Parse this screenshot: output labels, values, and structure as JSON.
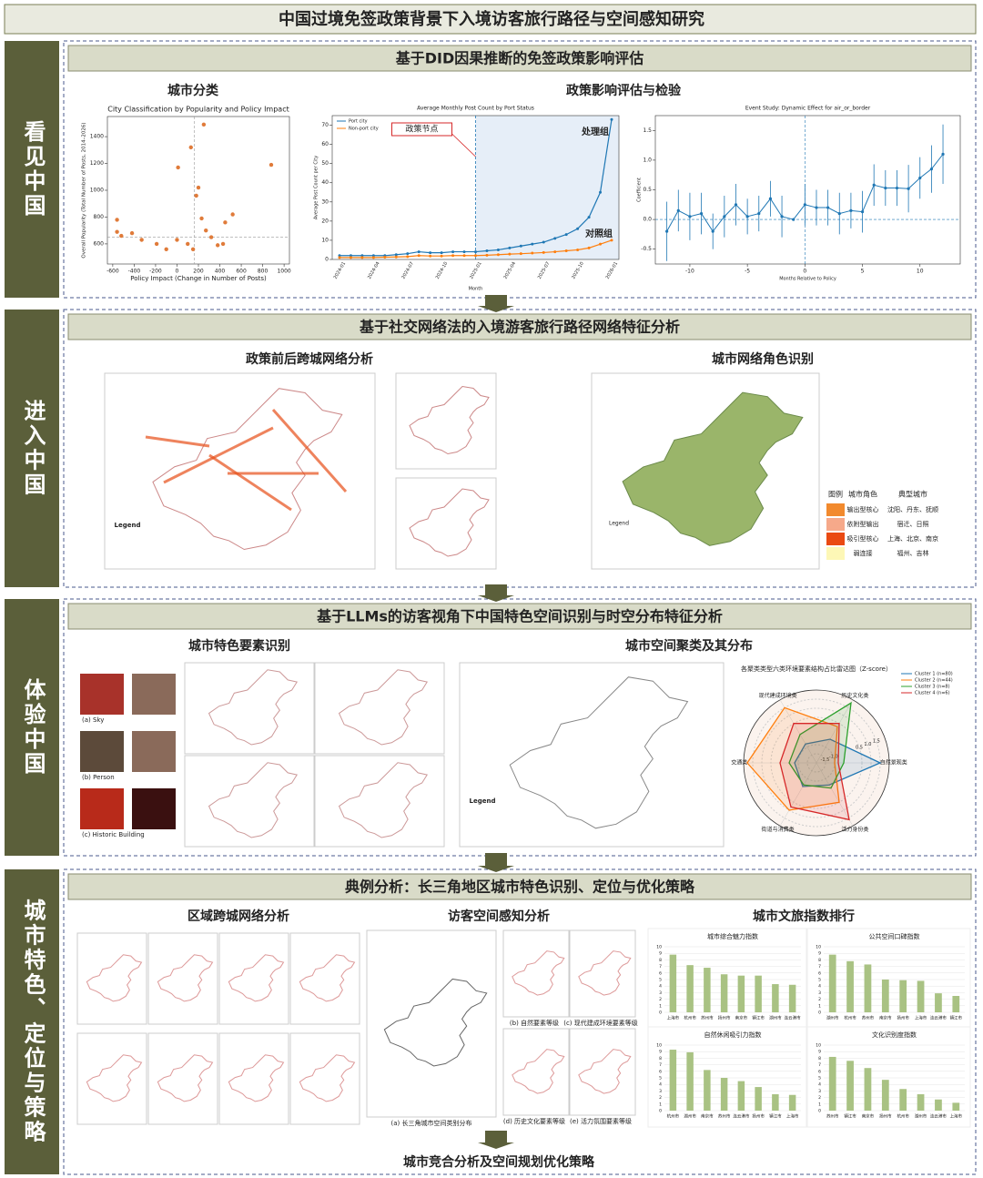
{
  "title": "中国过境免签政策背景下入境访客旅行路径与空间感知研究",
  "sections": [
    {
      "label": "看见中国",
      "header": "基于DID因果推断的免签政策影响评估",
      "panels": [
        "城市分类",
        "政策影响评估与检验"
      ]
    },
    {
      "label": "进入中国",
      "header": "基于社交网络法的入境游客旅行路径网络特征分析",
      "panels": [
        "政策前后跨城网络分析",
        "城市网络角色识别"
      ],
      "map_legend": "Legend",
      "legend": {
        "title": "图例",
        "columns": [
          "城市角色",
          "典型城市"
        ],
        "rows": [
          {
            "role": "输出型核心",
            "cities": "沈阳、丹东、抚顺",
            "color": "#f28a2e"
          },
          {
            "role": "依附型输出",
            "cities": "宿迁、日照",
            "color": "#f6a98a"
          },
          {
            "role": "吸引型核心",
            "cities": "上海、北京、南京",
            "color": "#ea4a12"
          },
          {
            "role": "弱连接",
            "cities": "福州、吉林",
            "color": "#fdf7b6"
          }
        ]
      }
    },
    {
      "label": "体验中国",
      "header": "基于LLMs的访客视角下中国特色空间识别与时空分布特征分析",
      "panels": [
        "城市特色要素识别",
        "城市空间聚类及其分布"
      ],
      "map_legend": "Legend",
      "photo_captions": [
        "(a) Sky",
        "(b) Person",
        "(c) Historic Building"
      ]
    },
    {
      "label": "城市特色、定位与策略",
      "header": "典例分析：长三角地区城市特色识别、定位与优化策略",
      "panels": [
        "区域跨城网络分析",
        "访客空间感知分析",
        "城市文旅指数排行"
      ],
      "captions": [
        "(a) 长三角城市空间类别分布",
        "(b) 自然要素等级",
        "(c) 现代建成环境要素等级",
        "(d) 历史文化要素等级",
        "(e) 活力氛围要素等级"
      ],
      "footer": "城市竞合分析及空间规划优化策略"
    }
  ],
  "chart_data": [
    {
      "type": "scatter",
      "title": "City Classification by Popularity and Policy Impact",
      "x_label": "Policy Impact (Change in Number of Posts)",
      "y_label": "Overall Popularity (Total Number of Posts, 2014–2026)",
      "color": "#e07b3a",
      "x": [
        -560,
        -560,
        -520,
        -420,
        -330,
        -190,
        -100,
        0,
        10,
        130,
        180,
        200,
        250,
        230,
        270,
        320,
        380,
        430,
        450,
        520,
        880,
        100,
        150
      ],
      "values": [
        780,
        690,
        660,
        680,
        630,
        600,
        560,
        630,
        1170,
        1320,
        960,
        1020,
        1490,
        790,
        700,
        650,
        590,
        600,
        760,
        820,
        1190,
        600,
        560
      ],
      "reference_lines": {
        "x": 160,
        "y": 650
      },
      "xlim": [
        -650,
        1050
      ],
      "xticks": [
        -600,
        -400,
        -200,
        0,
        200,
        400,
        600,
        800,
        1000
      ],
      "ylim": [
        450,
        1550
      ],
      "yticks": [
        600,
        800,
        1000,
        1200,
        1400
      ]
    },
    {
      "type": "line",
      "title": "Average Monthly Post Count by Port Status",
      "x_label": "Month",
      "y_label": "Average Post Count per City",
      "categories": [
        "2024-01",
        null,
        null,
        "2024-04",
        null,
        null,
        "2024-07",
        null,
        null,
        "2024-10",
        null,
        null,
        "2025-01",
        null,
        null,
        "2025-04",
        null,
        null,
        "2025-07",
        null,
        null,
        "2025-10",
        null,
        null,
        "2026-01"
      ],
      "series": [
        {
          "name": "Port city",
          "color": "#1f77b4",
          "values": [
            2,
            2,
            2,
            2,
            2,
            2.5,
            3,
            4,
            3.5,
            3.5,
            4,
            4,
            4,
            4.5,
            5,
            6,
            7,
            8,
            9,
            11,
            13,
            16,
            22,
            35,
            73
          ]
        },
        {
          "name": "Non-port city",
          "color": "#ff7f0e",
          "values": [
            1,
            1,
            1,
            1,
            1.2,
            1.3,
            1.5,
            2,
            1.8,
            1.8,
            2,
            2,
            2,
            2.2,
            2.5,
            2.8,
            3,
            3.3,
            3.6,
            4,
            4.5,
            5,
            6,
            8,
            10
          ]
        }
      ],
      "annotations": [
        {
          "text": "政策节点",
          "x": "2025-01"
        },
        {
          "text": "处理组"
        },
        {
          "text": "对照组"
        }
      ],
      "ylim": [
        0,
        75
      ],
      "yticks": [
        0,
        10,
        20,
        30,
        40,
        50,
        60,
        70
      ]
    },
    {
      "type": "errorbar",
      "title": "Event Study: Dynamic Effect for air_or_border",
      "x_label": "Months Relative to Policy",
      "y_label": "Coefficient",
      "color": "#1f77b4",
      "x": [
        -12,
        -11,
        -10,
        -9,
        -8,
        -7,
        -6,
        -5,
        -4,
        -3,
        -2,
        -1,
        0,
        1,
        2,
        3,
        4,
        5,
        6,
        7,
        8,
        9,
        10,
        11,
        12
      ],
      "values": [
        -0.2,
        0.15,
        0.05,
        0.1,
        -0.2,
        0.05,
        0.25,
        0.05,
        0.1,
        0.35,
        0.05,
        0,
        0.25,
        0.2,
        0.2,
        0.1,
        0.15,
        0.13,
        0.58,
        0.53,
        0.53,
        0.52,
        0.7,
        0.85,
        1.1
      ],
      "errors": [
        0.5,
        0.35,
        0.4,
        0.35,
        0.3,
        0.35,
        0.35,
        0.3,
        0.3,
        0.3,
        0.35,
        0,
        0.35,
        0.3,
        0.3,
        0.35,
        0.3,
        0.35,
        0.35,
        0.3,
        0.3,
        0.4,
        0.35,
        0.4,
        0.5
      ],
      "xlim": [
        -13,
        13.5
      ],
      "xticks": [
        -10,
        -5,
        0,
        5,
        10
      ],
      "ylim": [
        -0.75,
        1.75
      ],
      "yticks": [
        {
          "value": -0.5,
          "label": "-0.5"
        },
        {
          "value": 0,
          "label": "0.0"
        },
        {
          "value": 0.5,
          "label": "0.5"
        },
        {
          "value": 1,
          "label": "1.0"
        },
        {
          "value": 1.5,
          "label": "1.5"
        }
      ]
    },
    {
      "type": "radar",
      "title": "各聚类类型六类环境要素结构占比雷达图（Z-score）",
      "categories": [
        "自然景观类",
        "历史文化类",
        "现代建成环境类",
        "交通类",
        "街道与消费类",
        "活力身份类"
      ],
      "series": [
        {
          "name": "Cluster 1 (n=80)",
          "color": "#1f77b4",
          "values": [
            1.5,
            -0.5,
            -0.8,
            -0.8,
            -0.5,
            -0.6
          ]
        },
        {
          "name": "Cluster 2 (n=44)",
          "color": "#ff7f0e",
          "values": [
            -1.0,
            0.3,
            1.5,
            1.8,
            1.0,
            0.5
          ]
        },
        {
          "name": "Cluster 3 (n=8)",
          "color": "#2ca02c",
          "values": [
            -0.5,
            1.8,
            -0.2,
            -0.5,
            -0.6,
            -0.4
          ]
        },
        {
          "name": "Cluster 4 (n=6)",
          "color": "#d62728",
          "values": [
            -0.8,
            0.5,
            0.5,
            0.0,
            0.8,
            1.6
          ]
        }
      ],
      "rlim": [
        -2,
        2
      ],
      "rticks": [
        -1.5,
        {
          "value": -1,
          "label": "-1.0"
        },
        0.5,
        {
          "value": 1,
          "label": "1.0"
        },
        1.5
      ]
    },
    {
      "type": "bar",
      "title": "城市综合魅力指数",
      "color": "#a9c283",
      "categories": [
        "上海市",
        "杭州市",
        "苏州市",
        "扬州市",
        "南京市",
        "镇江市",
        "湖州市",
        "连云港市"
      ],
      "values": [
        8.8,
        7.2,
        6.8,
        5.8,
        5.6,
        5.6,
        4.3,
        4.2
      ],
      "ylim": [
        0,
        10
      ],
      "yticks": [
        0,
        1,
        2,
        3,
        4,
        5,
        6,
        7,
        8,
        9,
        10
      ]
    },
    {
      "type": "bar",
      "title": "公共空间口碑指数",
      "color": "#a9c283",
      "categories": [
        "湖州市",
        "杭州市",
        "苏州市",
        "南京市",
        "扬州市",
        "上海市",
        "连云港市",
        "镇江市"
      ],
      "values": [
        8.8,
        7.8,
        7.3,
        5,
        4.9,
        4.8,
        2.9,
        2.5
      ],
      "ylim": [
        0,
        10
      ],
      "yticks": [
        0,
        1,
        2,
        3,
        4,
        5,
        6,
        7,
        8,
        9,
        10
      ]
    },
    {
      "type": "bar",
      "title": "自然休闲吸引力指数",
      "color": "#a9c283",
      "categories": [
        "杭州市",
        "湖州市",
        "南京市",
        "苏州市",
        "连云港市",
        "扬州市",
        "镇江市",
        "上海市"
      ],
      "values": [
        9.3,
        8.9,
        6.2,
        5,
        4.5,
        3.6,
        2.5,
        2.4
      ],
      "ylim": [
        0,
        10
      ],
      "yticks": [
        0,
        1,
        2,
        3,
        4,
        5,
        6,
        7,
        8,
        9,
        10
      ]
    },
    {
      "type": "bar",
      "title": "文化识别度指数",
      "color": "#a9c283",
      "categories": [
        "苏州市",
        "镇江市",
        "南京市",
        "扬州市",
        "杭州市",
        "湖州市",
        "连云港市",
        "上海市"
      ],
      "values": [
        8.2,
        7.6,
        6.5,
        4.7,
        3.3,
        2.5,
        1.7,
        1.2
      ],
      "ylim": [
        0,
        10
      ],
      "yticks": [
        0,
        1,
        2,
        3,
        4,
        5,
        6,
        7,
        8,
        9,
        10
      ]
    }
  ]
}
